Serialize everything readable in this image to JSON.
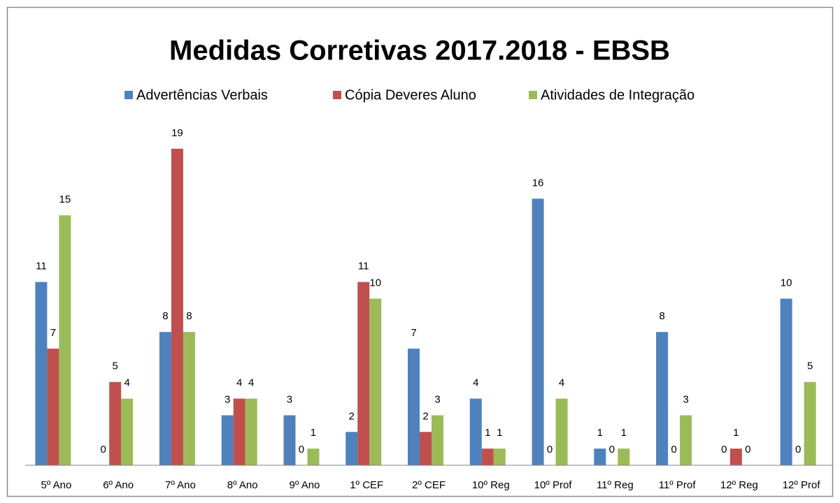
{
  "chart_data": {
    "type": "bar",
    "title": "Medidas Corretivas 2017.2018 - EBSB",
    "categories": [
      "5º Ano",
      "6º Ano",
      "7º Ano",
      "8º Ano",
      "9º Ano",
      "1º CEF",
      "2º CEF",
      "10º Reg",
      "10º Prof",
      "11º Reg",
      "11º Prof",
      "12º Reg",
      "12º Prof"
    ],
    "series": [
      {
        "name": "Advertências Verbais",
        "color": "#4f81bd",
        "values": [
          11,
          0,
          8,
          3,
          3,
          2,
          7,
          4,
          16,
          1,
          8,
          0,
          10
        ]
      },
      {
        "name": "Cópia Deveres Aluno",
        "color": "#c0504d",
        "values": [
          7,
          5,
          19,
          4,
          0,
          11,
          2,
          1,
          0,
          0,
          0,
          1,
          0
        ]
      },
      {
        "name": "Atividades de Integração",
        "color": "#9bbb59",
        "values": [
          15,
          4,
          8,
          4,
          1,
          10,
          3,
          1,
          4,
          1,
          3,
          0,
          5
        ]
      }
    ],
    "ylim": [
      0,
      20
    ],
    "legend": "top"
  }
}
